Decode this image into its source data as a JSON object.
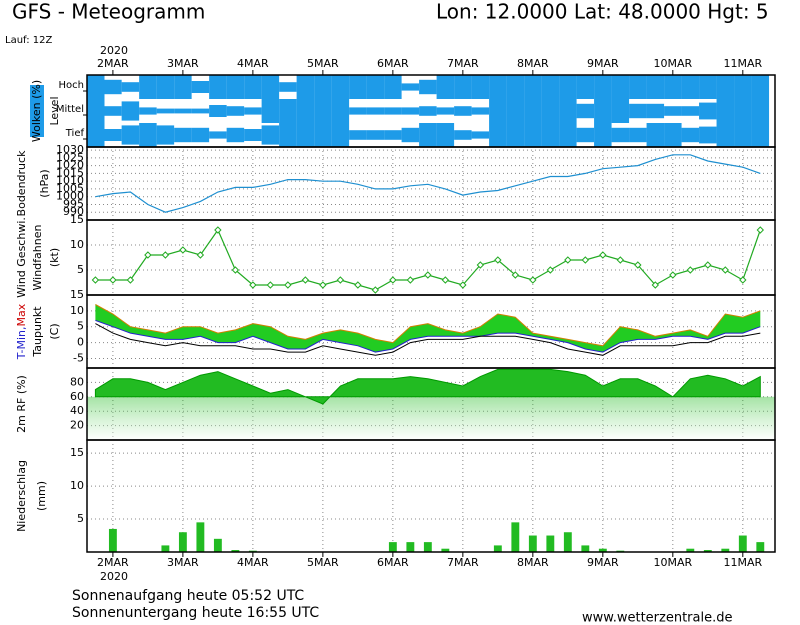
{
  "header": {
    "title": "GFS - Meteogramm",
    "location": "Lon: 12.0000 Lat: 48.0000 Hgt: 5",
    "run": "Lauf: 12Z",
    "year": "2020"
  },
  "time_axis": {
    "xlim": [
      -0.37,
      9.46
    ],
    "xticks": [
      {
        "value": 0,
        "label": "2MAR"
      },
      {
        "value": 1,
        "label": "3MAR"
      },
      {
        "value": 2,
        "label": "4MAR"
      },
      {
        "value": 3,
        "label": "5MAR"
      },
      {
        "value": 4,
        "label": "6MAR"
      },
      {
        "value": 5,
        "label": "7MAR"
      },
      {
        "value": 6,
        "label": "8MAR"
      },
      {
        "value": 7,
        "label": "9MAR"
      },
      {
        "value": 8,
        "label": "10MAR"
      },
      {
        "value": 9,
        "label": "11MAR"
      }
    ],
    "x": [
      -0.25,
      0,
      0.25,
      0.5,
      0.75,
      1,
      1.25,
      1.5,
      1.75,
      2,
      2.25,
      2.5,
      2.75,
      3,
      3.25,
      3.5,
      3.75,
      4,
      4.25,
      4.5,
      4.75,
      5,
      5.25,
      5.5,
      5.75,
      6,
      6.25,
      6.5,
      6.75,
      7,
      7.25,
      7.5,
      7.75,
      8,
      8.25,
      8.5,
      8.75,
      9,
      9.25
    ]
  },
  "chart_data": [
    {
      "type": "cloud",
      "title": "Wolken (%)",
      "subtitle": "Level",
      "ylim": [
        0,
        100
      ],
      "series": [
        {
          "name": "Hoch",
          "color": "#1e9be8",
          "values": [
            100,
            60,
            40,
            100,
            100,
            100,
            50,
            100,
            100,
            100,
            100,
            40,
            100,
            100,
            100,
            100,
            100,
            100,
            30,
            60,
            100,
            100,
            100,
            100,
            100,
            100,
            100,
            100,
            100,
            100,
            100,
            100,
            100,
            100,
            100,
            100,
            100,
            100,
            100
          ]
        },
        {
          "name": "Mittel",
          "color": "#1e9be8",
          "values": [
            100,
            40,
            80,
            30,
            20,
            20,
            20,
            50,
            40,
            30,
            100,
            100,
            100,
            100,
            100,
            30,
            30,
            30,
            30,
            40,
            30,
            40,
            30,
            100,
            100,
            100,
            100,
            100,
            60,
            100,
            100,
            60,
            60,
            40,
            40,
            70,
            100,
            100,
            100
          ]
        },
        {
          "name": "Tief",
          "color": "#1e9be8",
          "values": [
            100,
            50,
            80,
            100,
            80,
            60,
            60,
            30,
            60,
            50,
            80,
            100,
            100,
            100,
            100,
            40,
            40,
            40,
            60,
            100,
            100,
            40,
            30,
            100,
            100,
            100,
            100,
            100,
            60,
            100,
            60,
            60,
            100,
            100,
            60,
            70,
            100,
            100,
            100
          ]
        }
      ]
    },
    {
      "type": "line",
      "title": "Bodendruck",
      "subtitle": "(hPa)",
      "ylim": [
        985,
        1032
      ],
      "yticks": [
        990,
        995,
        1000,
        1005,
        1010,
        1015,
        1020,
        1025,
        1030
      ],
      "grid": true,
      "series": [
        {
          "name": "Bodendruck",
          "color": "#1e8fd0",
          "values": [
            1000,
            1002,
            1003,
            995,
            990,
            993,
            997,
            1003,
            1006,
            1006,
            1008,
            1011,
            1011,
            1010,
            1010,
            1008,
            1005,
            1005,
            1007,
            1008,
            1005,
            1001,
            1003,
            1004,
            1007,
            1010,
            1013,
            1013,
            1015,
            1018,
            1019,
            1020,
            1024,
            1027,
            1027,
            1023,
            1021,
            1019,
            1015
          ]
        }
      ]
    },
    {
      "type": "line",
      "title": "Wind Geschwi.",
      "subtitle": "Windfahnen",
      "unit": "(kt)",
      "ylim": [
        0,
        15
      ],
      "yticks": [
        5,
        10,
        15
      ],
      "grid": true,
      "markers": true,
      "series": [
        {
          "name": "Wind Geschwi.",
          "color": "#22aa22",
          "values": [
            3,
            3,
            3,
            8,
            8,
            9,
            8,
            13,
            5,
            2,
            2,
            2,
            3,
            2,
            3,
            2,
            1,
            3,
            3,
            4,
            3,
            2,
            6,
            7,
            4,
            3,
            5,
            7,
            7,
            8,
            7,
            6,
            2,
            4,
            5,
            6,
            5,
            3,
            13
          ]
        }
      ]
    },
    {
      "type": "temperature",
      "title_parts": [
        "T-Min,",
        "Max"
      ],
      "subtitle": "Taupunkt",
      "unit": "(C)",
      "ylim": [
        -8,
        15
      ],
      "yticks": [
        -5,
        0,
        5,
        10,
        15
      ],
      "grid": true,
      "fill": "#22cc22",
      "series": [
        {
          "name": "Max",
          "color": "#d08000",
          "values": [
            12,
            9,
            5,
            4,
            3,
            5,
            5,
            3,
            4,
            6,
            5,
            2,
            1,
            3,
            4,
            3,
            1,
            0,
            5,
            6,
            4,
            3,
            5,
            9,
            8,
            3,
            2,
            1,
            0,
            -1,
            5,
            4,
            2,
            3,
            4,
            2,
            9,
            8,
            10
          ]
        },
        {
          "name": "T-Min",
          "color": "#2222cc",
          "values": [
            7,
            5,
            3,
            2,
            1,
            1,
            2,
            0,
            0,
            2,
            0,
            -2,
            -2,
            1,
            0,
            -1,
            -3,
            -2,
            1,
            2,
            2,
            2,
            2,
            3,
            3,
            2,
            1,
            0,
            -2,
            -3,
            0,
            1,
            1,
            2,
            2,
            1,
            3,
            3,
            5
          ]
        },
        {
          "name": "Taupunkt",
          "color": "#000000",
          "values": [
            6,
            3,
            1,
            0,
            -1,
            0,
            -1,
            -1,
            -1,
            -2,
            -2,
            -3,
            -3,
            -1,
            -2,
            -3,
            -4,
            -3,
            0,
            1,
            1,
            1,
            2,
            2,
            2,
            1,
            0,
            -2,
            -3,
            -4,
            -1,
            -1,
            -1,
            -1,
            0,
            0,
            2,
            2,
            3
          ]
        }
      ]
    },
    {
      "type": "area",
      "title": "2m RF (%)",
      "ylim": [
        0,
        100
      ],
      "yticks": [
        20,
        40,
        60,
        80
      ],
      "grid": true,
      "series": [
        {
          "name": "2m RF",
          "color": "#22bb22",
          "values": [
            70,
            85,
            85,
            80,
            70,
            80,
            90,
            95,
            85,
            75,
            65,
            70,
            60,
            50,
            75,
            85,
            85,
            85,
            88,
            85,
            80,
            75,
            88,
            98,
            98,
            98,
            98,
            95,
            90,
            75,
            85,
            85,
            75,
            60,
            85,
            90,
            85,
            75,
            88
          ]
        }
      ]
    },
    {
      "type": "bar",
      "title": "Niederschlag",
      "subtitle": "(mm)",
      "ylim": [
        0,
        17
      ],
      "yticks": [
        5,
        10,
        15
      ],
      "grid": true,
      "series": [
        {
          "name": "Niederschlag",
          "color": "#22bb22",
          "values": [
            0,
            3.5,
            0,
            0,
            1,
            3,
            4.5,
            2,
            0.3,
            0.2,
            0,
            0,
            0,
            0,
            0,
            0,
            0,
            1.5,
            1.5,
            1.5,
            0.5,
            0,
            0,
            1,
            4.5,
            2.5,
            2.5,
            3,
            1,
            0.5,
            0.2,
            0,
            0,
            0,
            0.5,
            0.3,
            0.5,
            2.5,
            1.5
          ]
        }
      ]
    }
  ],
  "footer": {
    "sunrise": "Sonnenaufgang heute 05:52 UTC",
    "sunset": "Sonnenuntergang heute 16:55 UTC",
    "url": "www.wetterzentrale.de"
  }
}
